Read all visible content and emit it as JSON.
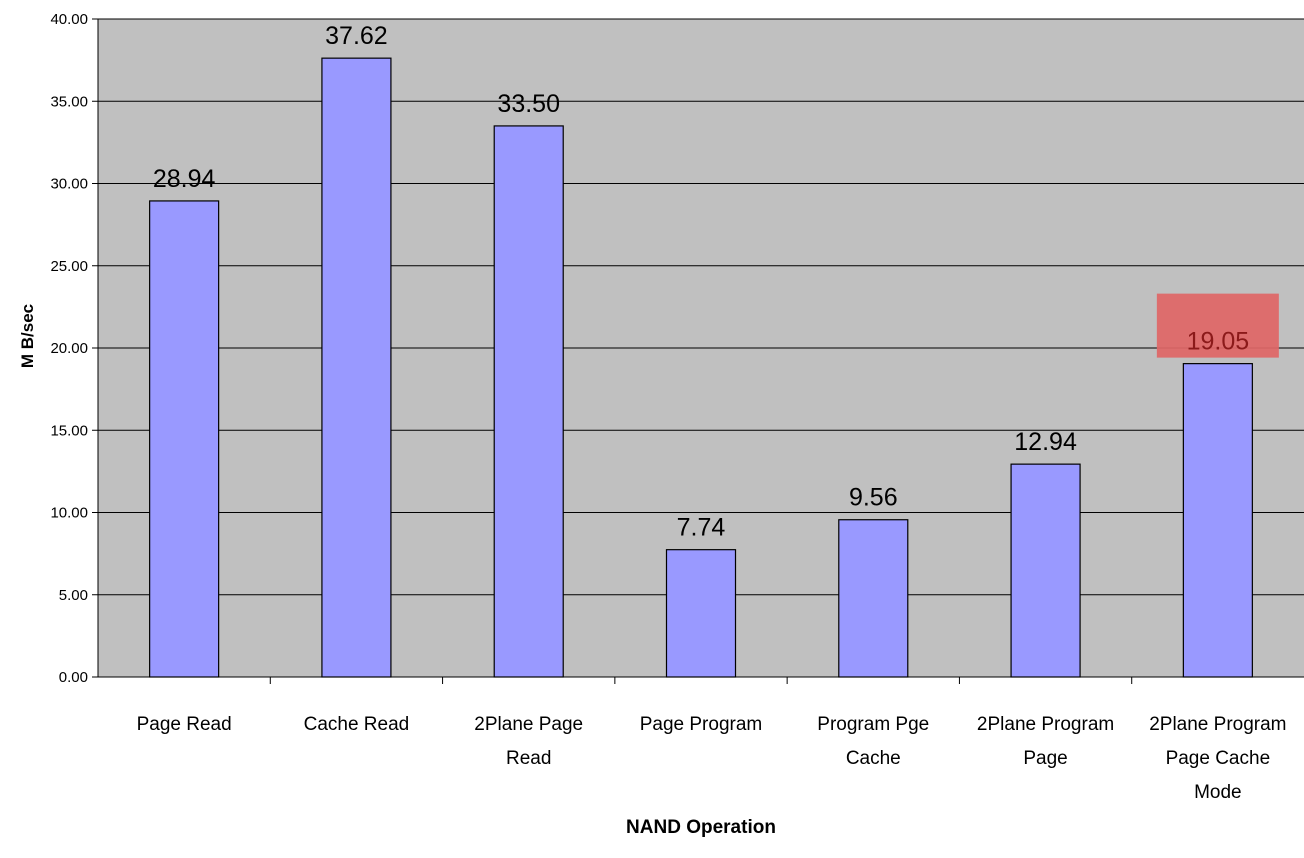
{
  "chart_data": {
    "type": "bar",
    "title": "",
    "xlabel": "NAND Operation",
    "ylabel": "M B/sec",
    "ylim": [
      0,
      40
    ],
    "ytick_step": 5,
    "ytick_labels": [
      "0.00",
      "5.00",
      "10.00",
      "15.00",
      "20.00",
      "25.00",
      "30.00",
      "35.00",
      "40.00"
    ],
    "grid": true,
    "legend": "none",
    "categories": [
      [
        "Page Read"
      ],
      [
        "Cache Read"
      ],
      [
        "2Plane Page",
        "Read"
      ],
      [
        "Page Program"
      ],
      [
        "Program Pge",
        "Cache"
      ],
      [
        "2Plane Program",
        "Page"
      ],
      [
        "2Plane Program",
        "Page Cache",
        "Mode"
      ]
    ],
    "values": [
      28.94,
      37.62,
      33.5,
      7.74,
      9.56,
      12.94,
      19.05
    ],
    "data_labels": [
      "28.94",
      "37.62",
      "33.50",
      "7.74",
      "9.56",
      "12.94",
      "19.05"
    ],
    "highlight_index": 6,
    "colors": {
      "plot_background": "#c0c0c0",
      "bar_fill": "#9999ff",
      "bar_stroke": "#000000",
      "gridline": "#000000",
      "highlight_box": "#e06666",
      "highlight_text": "#8b1a1a",
      "text": "#000000"
    }
  }
}
